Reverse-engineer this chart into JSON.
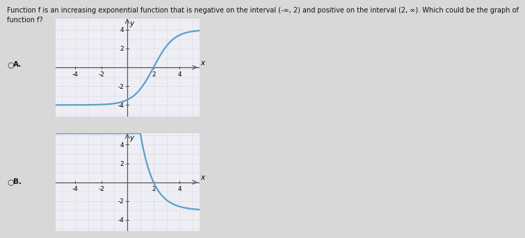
{
  "title_line1": "Function f is an increasing exponential function that is negative on the interval (-∞, 2) and positive on the interval (2, ∞). Which could be the graph of",
  "title_line2": "function f?",
  "graph_A_label": "A.",
  "graph_B_label": "B.",
  "xlim": [
    -5.5,
    5.5
  ],
  "ylim": [
    -5.2,
    5.2
  ],
  "x_ticks": [
    -4,
    -2,
    2,
    4
  ],
  "y_ticks": [
    -4,
    -2,
    2,
    4
  ],
  "curve_color": "#5a9fc5",
  "curve_linewidth": 1.6,
  "grid_color": "#c0c0d8",
  "bg_color": "#eeeef5",
  "axis_color": "#555555",
  "text_color": "#111111",
  "font_size_title": 7.0,
  "font_size_label": 7.5,
  "font_size_tick": 6.5,
  "fig_bg": "#d8d8d8"
}
